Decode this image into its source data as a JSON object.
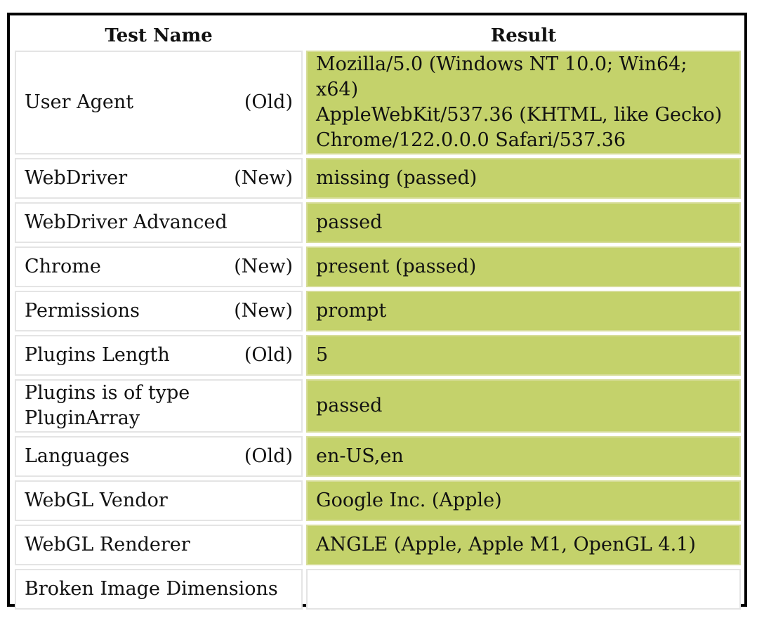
{
  "headers": {
    "name": "Test Name",
    "result": "Result"
  },
  "rows": [
    {
      "name": "User Agent",
      "tag": "(Old)",
      "result_lines": [
        "Mozilla/5.0 (Windows NT 10.0; Win64; x64)",
        "AppleWebKit/537.36 (KHTML, like Gecko)",
        "Chrome/122.0.0.0 Safari/537.36"
      ]
    },
    {
      "name": "WebDriver",
      "tag": "(New)",
      "result": "missing (passed)"
    },
    {
      "name": "WebDriver Advanced",
      "tag": "",
      "result": "passed"
    },
    {
      "name": "Chrome",
      "tag": "(New)",
      "result": "present (passed)"
    },
    {
      "name": "Permissions",
      "tag": "(New)",
      "result": "prompt"
    },
    {
      "name": "Plugins Length",
      "tag": "(Old)",
      "result": "5"
    },
    {
      "name": "Plugins is of type PluginArray",
      "tag": "",
      "result": "passed"
    },
    {
      "name": "Languages",
      "tag": "(Old)",
      "result": "en-US,en"
    },
    {
      "name": "WebGL Vendor",
      "tag": "",
      "result": "Google Inc. (Apple)"
    },
    {
      "name": "WebGL Renderer",
      "tag": "",
      "result": "ANGLE (Apple, Apple M1, OpenGL 4.1)"
    },
    {
      "name": "Broken Image Dimensions",
      "tag": "",
      "result": ""
    }
  ],
  "colors": {
    "passed_bg": "#c4d26b",
    "cell_border": "#e4e4e4",
    "frame_border": "#000000"
  }
}
